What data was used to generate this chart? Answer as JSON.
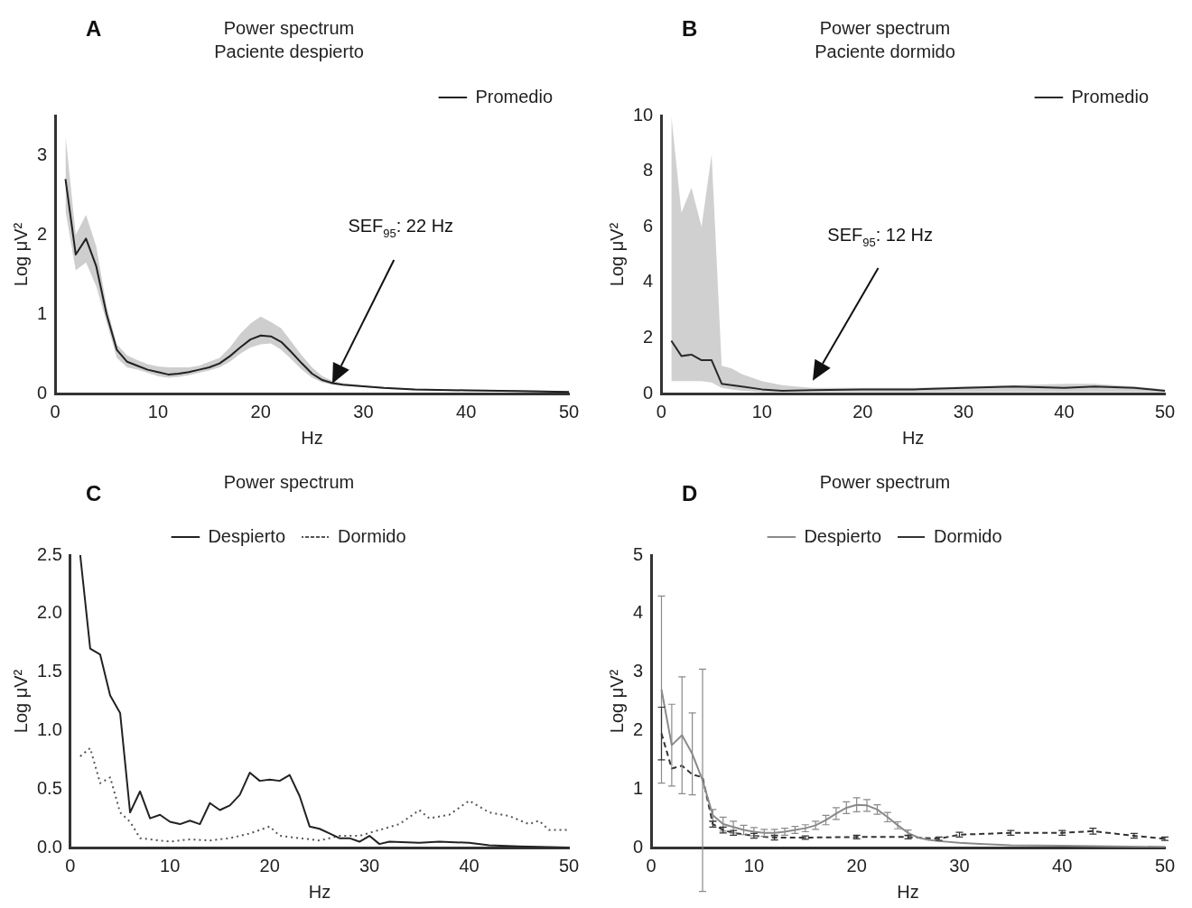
{
  "chart_data": [
    {
      "type": "line",
      "title": "Power spectrum",
      "subtitle": "Paciente despierto",
      "xlabel": "Hz",
      "ylabel": "Log μV²",
      "xlim": [
        0,
        50
      ],
      "xticks": [
        0,
        10,
        20,
        30,
        40,
        50
      ],
      "ylim": [
        0,
        3.5
      ],
      "yticks": [
        0,
        1,
        2,
        3
      ],
      "grid": false,
      "legend": "top right",
      "marker": "none",
      "annotations": [
        "A",
        "SEF$_{95}$: 22 Hz"
      ],
      "x": [
        1,
        2,
        3,
        4,
        5,
        6,
        7,
        8,
        9,
        10,
        11,
        12,
        13,
        14,
        15,
        16,
        17,
        18,
        19,
        20,
        21,
        22,
        23,
        24,
        25,
        26,
        27,
        28,
        30,
        32,
        35,
        40,
        45,
        50
      ],
      "series": [
        {
          "name": "Promedio",
          "color": "#222222",
          "values": [
            2.7,
            1.75,
            1.95,
            1.6,
            1.0,
            0.55,
            0.4,
            0.35,
            0.3,
            0.27,
            0.24,
            0.25,
            0.27,
            0.3,
            0.33,
            0.38,
            0.47,
            0.58,
            0.68,
            0.73,
            0.72,
            0.65,
            0.52,
            0.38,
            0.25,
            0.17,
            0.13,
            0.11,
            0.09,
            0.07,
            0.05,
            0.04,
            0.03,
            0.02
          ],
          "lower": [
            2.3,
            1.55,
            1.65,
            1.35,
            0.9,
            0.45,
            0.33,
            0.3,
            0.26,
            0.22,
            0.2,
            0.21,
            0.23,
            0.26,
            0.29,
            0.33,
            0.4,
            0.5,
            0.58,
            0.62,
            0.63,
            0.55,
            0.43,
            0.3,
            0.2,
            0.14,
            0.11,
            0.1,
            0.08,
            0.06,
            0.04,
            0.03,
            0.02,
            0.01
          ],
          "upper": [
            3.25,
            2.0,
            2.25,
            1.85,
            1.1,
            0.62,
            0.48,
            0.42,
            0.37,
            0.34,
            0.33,
            0.33,
            0.33,
            0.35,
            0.4,
            0.45,
            0.58,
            0.75,
            0.88,
            0.97,
            0.9,
            0.82,
            0.65,
            0.48,
            0.33,
            0.22,
            0.16,
            0.13,
            0.1,
            0.08,
            0.06,
            0.05,
            0.04,
            0.03
          ]
        }
      ]
    },
    {
      "type": "line",
      "title": "Power spectrum",
      "subtitle": "Paciente dormido",
      "xlabel": "Hz",
      "ylabel": "Log μV²",
      "xlim": [
        0,
        50
      ],
      "xticks": [
        0,
        10,
        20,
        30,
        40,
        50
      ],
      "ylim": [
        0,
        10
      ],
      "yticks": [
        0,
        2,
        4,
        6,
        8,
        10
      ],
      "grid": false,
      "legend": "top right",
      "marker": "none",
      "annotations": [
        "B",
        "SEF$_{95}$: 12 Hz"
      ],
      "x": [
        1,
        2,
        3,
        4,
        5,
        6,
        7,
        8,
        10,
        12,
        15,
        20,
        25,
        30,
        35,
        40,
        43,
        47,
        50
      ],
      "series": [
        {
          "name": "Promedio",
          "color": "#2a2a2a",
          "values": [
            1.9,
            1.35,
            1.4,
            1.2,
            1.2,
            0.35,
            0.3,
            0.25,
            0.15,
            0.1,
            0.12,
            0.15,
            0.15,
            0.2,
            0.25,
            0.2,
            0.25,
            0.2,
            0.1
          ],
          "lower": [
            0.45,
            0.45,
            0.45,
            0.45,
            0.4,
            0.2,
            0.15,
            0.1,
            0.05,
            0.05,
            0.05,
            0.05,
            0.05,
            0.05,
            0.05,
            0.05,
            0.05,
            0.05,
            0.05
          ],
          "upper": [
            10,
            6.5,
            7.4,
            6.0,
            8.6,
            1.0,
            0.9,
            0.7,
            0.45,
            0.3,
            0.2,
            0.2,
            0.2,
            0.25,
            0.3,
            0.35,
            0.35,
            0.25,
            0.15
          ]
        }
      ]
    },
    {
      "type": "line",
      "title": "Power spectrum",
      "xlabel": "Hz",
      "ylabel": "Log μV²",
      "xlim": [
        0,
        50
      ],
      "xticks": [
        0,
        10,
        20,
        30,
        40,
        50
      ],
      "ylim": [
        0,
        2.5
      ],
      "yticks": [
        {
          "value": 0,
          "label": "0.0"
        },
        {
          "value": 0.5,
          "label": "0.5"
        },
        {
          "value": 1,
          "label": "1.0"
        },
        {
          "value": 1.5,
          "label": "1.5"
        },
        {
          "value": 2,
          "label": "2.0"
        },
        {
          "value": 2.5,
          "label": "2.5"
        }
      ],
      "grid": false,
      "legend": "top",
      "marker": "none",
      "annotations": [
        "C"
      ],
      "series": [
        {
          "name": "Despierto",
          "color": "#222222",
          "line_style": "solid",
          "x": [
            1,
            2,
            3,
            4,
            5,
            6,
            7,
            8,
            9,
            10,
            11,
            12,
            13,
            14,
            15,
            16,
            17,
            18,
            19,
            20,
            21,
            22,
            23,
            24,
            25,
            26,
            27,
            28,
            29,
            30,
            31,
            32,
            35,
            37,
            40,
            42,
            45,
            50
          ],
          "values": [
            2.5,
            1.7,
            1.65,
            1.3,
            1.15,
            0.3,
            0.48,
            0.25,
            0.28,
            0.22,
            0.2,
            0.23,
            0.2,
            0.38,
            0.32,
            0.36,
            0.45,
            0.64,
            0.57,
            0.58,
            0.57,
            0.62,
            0.44,
            0.18,
            0.16,
            0.12,
            0.08,
            0.08,
            0.05,
            0.1,
            0.03,
            0.05,
            0.04,
            0.05,
            0.04,
            0.02,
            0.01,
            0
          ]
        },
        {
          "name": "Dormido",
          "color": "#555555",
          "line_style": "dotted",
          "x": [
            1,
            2,
            3,
            4,
            5,
            6,
            7,
            8,
            10,
            12,
            14,
            16,
            18,
            20,
            21,
            23,
            25,
            27,
            29,
            31,
            33,
            35,
            36,
            38,
            40,
            42,
            44,
            46,
            47,
            48,
            50
          ],
          "values": [
            0.78,
            0.85,
            0.55,
            0.6,
            0.3,
            0.22,
            0.08,
            0.07,
            0.05,
            0.07,
            0.06,
            0.08,
            0.12,
            0.18,
            0.1,
            0.08,
            0.06,
            0.1,
            0.1,
            0.15,
            0.2,
            0.32,
            0.25,
            0.28,
            0.4,
            0.3,
            0.27,
            0.2,
            0.23,
            0.15,
            0.15
          ]
        }
      ]
    },
    {
      "type": "line",
      "title": "Power spectrum",
      "xlabel": "Hz",
      "ylabel": "Log μV²",
      "xlim": [
        0,
        50
      ],
      "xticks": [
        0,
        10,
        20,
        30,
        40,
        50
      ],
      "ylim": [
        0,
        5
      ],
      "yticks": [
        0,
        1,
        2,
        3,
        4,
        5
      ],
      "grid": false,
      "legend": "top",
      "annotations": [
        "D"
      ],
      "series": [
        {
          "name": "Despierto",
          "color": "#8a8a8a",
          "line_style": "solid",
          "x": [
            1,
            2,
            3,
            4,
            5,
            6,
            7,
            8,
            9,
            10,
            11,
            12,
            13,
            14,
            15,
            16,
            17,
            18,
            19,
            20,
            21,
            22,
            23,
            24,
            25,
            26,
            27,
            28,
            30,
            32,
            35,
            40,
            45,
            50
          ],
          "values": [
            2.7,
            1.75,
            1.92,
            1.6,
            1.15,
            0.55,
            0.4,
            0.35,
            0.3,
            0.27,
            0.25,
            0.25,
            0.27,
            0.3,
            0.33,
            0.38,
            0.47,
            0.58,
            0.68,
            0.73,
            0.72,
            0.65,
            0.52,
            0.38,
            0.25,
            0.17,
            0.13,
            0.11,
            0.08,
            0.06,
            0.04,
            0.03,
            0.02,
            0.01
          ],
          "errors": [
            1.6,
            0.7,
            1.0,
            0.7,
            1.9,
            0.1,
            0.12,
            0.1,
            0.08,
            0.07,
            0.06,
            0.06,
            0.06,
            0.06,
            0.06,
            0.07,
            0.08,
            0.1,
            0.1,
            0.12,
            0.1,
            0.08,
            0.08,
            0.06,
            0.05,
            null,
            null,
            null,
            null,
            null,
            null,
            null,
            null,
            null
          ]
        },
        {
          "name": "Dormido",
          "color": "#333333",
          "line_style": "dashed",
          "x": [
            1,
            2,
            3,
            4,
            5,
            6,
            7,
            8,
            10,
            12,
            15,
            20,
            25,
            28,
            30,
            35,
            40,
            43,
            47,
            50
          ],
          "values": [
            1.95,
            1.35,
            1.4,
            1.25,
            1.2,
            0.4,
            0.3,
            0.25,
            0.2,
            0.17,
            0.17,
            0.18,
            0.18,
            0.15,
            0.22,
            0.25,
            0.25,
            0.28,
            0.2,
            0.15
          ],
          "errors": [
            0.45,
            null,
            null,
            null,
            null,
            0.05,
            0.05,
            0.04,
            0.04,
            0.04,
            0.03,
            0.03,
            0.03,
            0.03,
            0.04,
            0.04,
            0.04,
            0.05,
            0.04,
            0.03
          ]
        }
      ]
    }
  ]
}
